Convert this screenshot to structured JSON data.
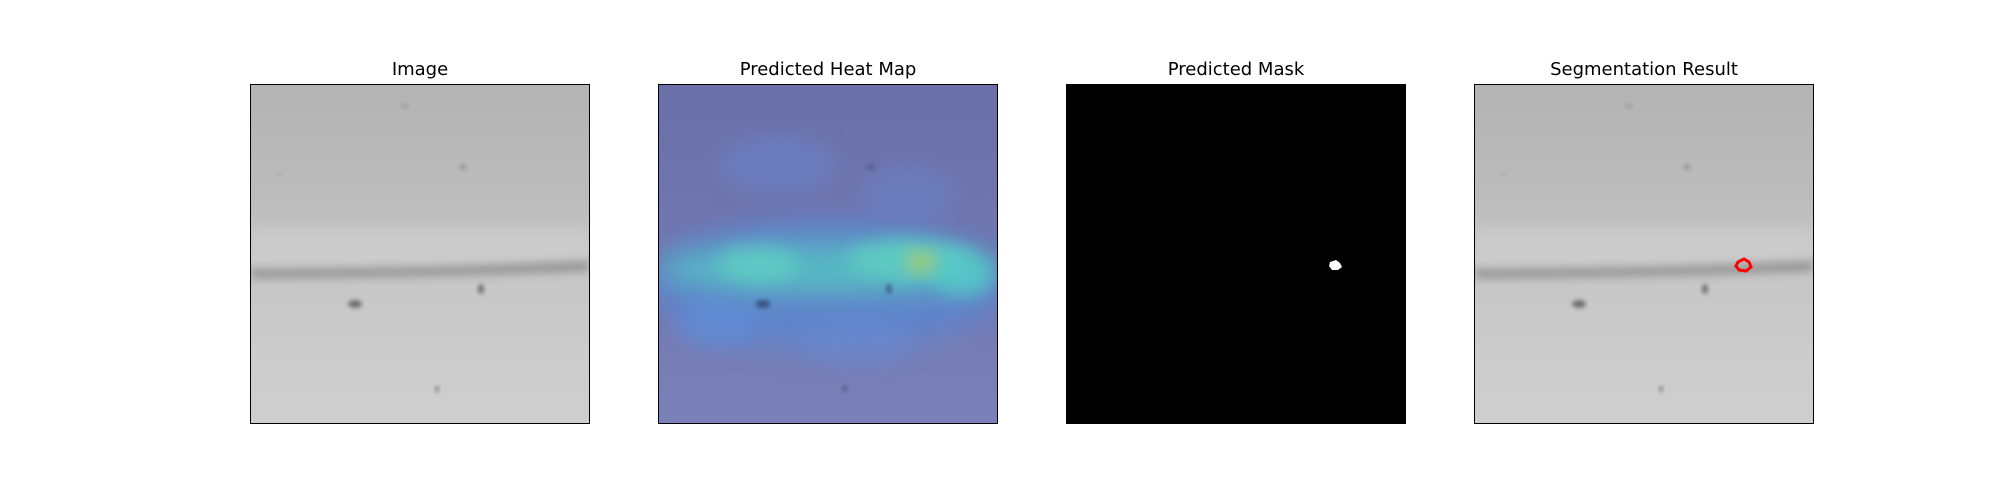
{
  "figure": {
    "panels": [
      {
        "title": "Image"
      },
      {
        "title": "Predicted Heat Map"
      },
      {
        "title": "Predicted Mask"
      },
      {
        "title": "Segmentation Result"
      }
    ]
  },
  "colors": {
    "frame": "#000000",
    "mask_background": "#000000",
    "mask_foreground": "#ffffff",
    "contour": "#ff0000",
    "heat_low": "#6a74b8",
    "heat_mid": "#56c8c0",
    "heat_high": "#b5c760"
  }
}
